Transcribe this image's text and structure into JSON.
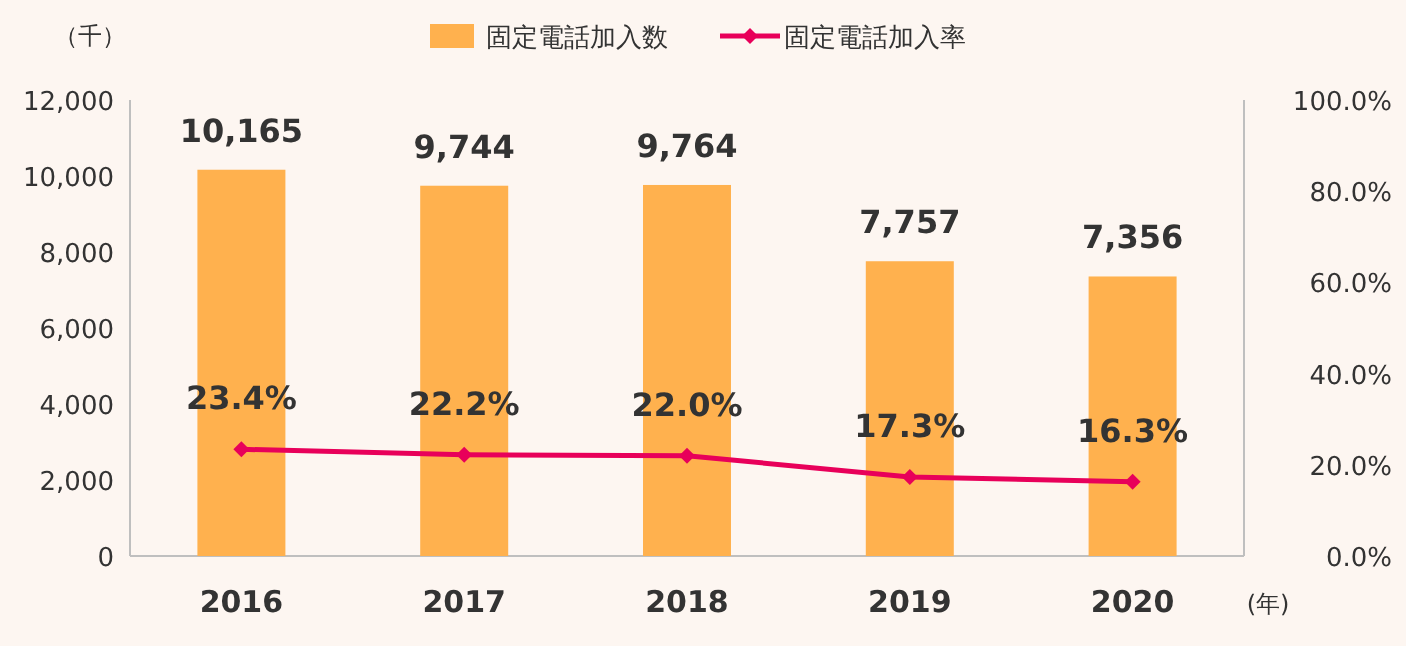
{
  "chart_data": {
    "type": "bar",
    "categories": [
      "2016",
      "2017",
      "2018",
      "2019",
      "2020"
    ],
    "ylabel": "（千）",
    "xlabel": "(年)",
    "series": [
      {
        "name": "固定電話加入数",
        "color": "#ffb14e",
        "values": [
          10165,
          9744,
          9764,
          7757,
          7356
        ],
        "value_labels": [
          "10,165",
          "9,744",
          "9,764",
          "7,757",
          "7,356"
        ]
      },
      {
        "name": "固定電話加入率",
        "type": "line",
        "axis": "y2",
        "color": "#e8005a",
        "marker": "diamond",
        "values": [
          23.4,
          22.2,
          22.0,
          17.3,
          16.3
        ],
        "value_labels": [
          "23.4%",
          "22.2%",
          "22.0%",
          "17.3%",
          "16.3%"
        ]
      }
    ],
    "ylim": [
      0,
      12000
    ],
    "yticks": [
      0,
      {
        "value": 2000,
        "label": "2,000"
      },
      {
        "value": 4000,
        "label": "4,000"
      },
      {
        "value": 6000,
        "label": "6,000"
      },
      {
        "value": 8000,
        "label": "8,000"
      },
      {
        "value": 10000,
        "label": "10,000"
      },
      {
        "value": 12000,
        "label": "12,000"
      }
    ],
    "y2lim": [
      0,
      100
    ],
    "y2ticks": [
      {
        "value": 0,
        "label": "0.0%"
      },
      {
        "value": 20,
        "label": "20.0%"
      },
      {
        "value": 40,
        "label": "40.0%"
      },
      {
        "value": 60,
        "label": "60.0%"
      },
      {
        "value": 80,
        "label": "80.0%"
      },
      {
        "value": 100,
        "label": "100.0%"
      }
    ],
    "legend": "top",
    "grid": false
  }
}
